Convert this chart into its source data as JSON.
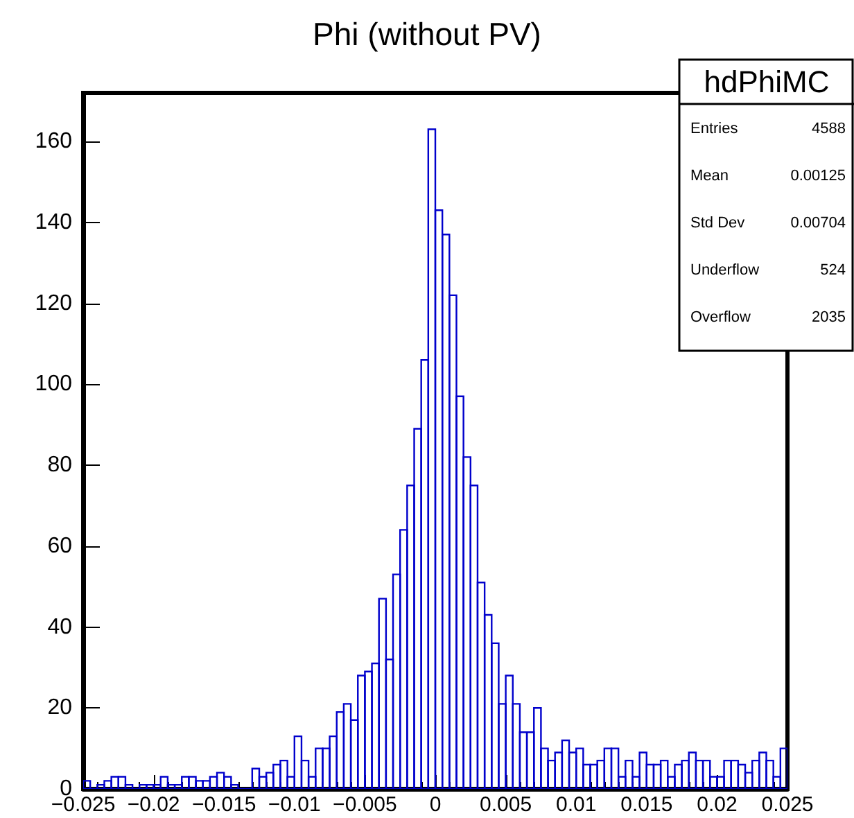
{
  "chart_data": {
    "type": "histogram",
    "title": "Phi (without PV)",
    "color": "#0000cc",
    "bins": [
      -0.025,
      -0.0245,
      -0.024,
      -0.0235,
      -0.023,
      -0.0225,
      -0.022,
      -0.0215,
      -0.021,
      -0.0205,
      -0.02,
      -0.0195,
      -0.019,
      -0.0185,
      -0.018,
      -0.0175,
      -0.017,
      -0.0165,
      -0.016,
      -0.0155,
      -0.015,
      -0.0145,
      -0.014,
      -0.0135,
      -0.013,
      -0.0125,
      -0.012,
      -0.0115,
      -0.011,
      -0.0105,
      -0.01,
      -0.0095,
      -0.009,
      -0.0085,
      -0.008,
      -0.0075,
      -0.007,
      -0.0065,
      -0.006,
      -0.0055,
      -0.005,
      -0.0045,
      -0.004,
      -0.0035,
      -0.003,
      -0.0025,
      -0.002,
      -0.0015,
      -0.001,
      -0.0005,
      0,
      0.0005,
      0.001,
      0.0015,
      0.002,
      0.0025,
      0.003,
      0.0035,
      0.004,
      0.0045,
      0.005,
      0.0055,
      0.006,
      0.0065,
      0.007,
      0.0075,
      0.008,
      0.0085,
      0.009,
      0.0095,
      0.01,
      0.0105,
      0.011,
      0.0115,
      0.012,
      0.0125,
      0.013,
      0.0135,
      0.014,
      0.0145,
      0.015,
      0.0155,
      0.016,
      0.0165,
      0.017,
      0.0175,
      0.018,
      0.0185,
      0.019,
      0.0195,
      0.02,
      0.0205,
      0.021,
      0.0215,
      0.022,
      0.0225,
      0.023,
      0.0235,
      0.024,
      0.0245,
      0.025
    ],
    "values": [
      2,
      0,
      1,
      2,
      3,
      3,
      1,
      0,
      1,
      1,
      1,
      3,
      1,
      1,
      3,
      3,
      2,
      2,
      3,
      4,
      3,
      1,
      0,
      0,
      5,
      3,
      4,
      6,
      7,
      3,
      13,
      7,
      3,
      10,
      10,
      13,
      19,
      21,
      17,
      28,
      29,
      31,
      47,
      32,
      53,
      64,
      75,
      89,
      106,
      163,
      143,
      137,
      122,
      97,
      82,
      75,
      51,
      43,
      36,
      21,
      28,
      21,
      14,
      14,
      20,
      10,
      7,
      9,
      12,
      9,
      10,
      6,
      6,
      7,
      10,
      10,
      3,
      7,
      3,
      9,
      6,
      6,
      7,
      3,
      6,
      7,
      9,
      7,
      7,
      3,
      3,
      7,
      7,
      6,
      4,
      7,
      9,
      7,
      3,
      10
    ],
    "xlim": [
      -0.025,
      0.025
    ],
    "xticks": [
      -0.025,
      -0.02,
      -0.015,
      -0.01,
      -0.005,
      0,
      0.005,
      0.01,
      0.015,
      0.02,
      0.025
    ],
    "ylim": [
      0,
      172
    ],
    "yticks": [
      0,
      20,
      40,
      60,
      80,
      100,
      120,
      140,
      160
    ],
    "grid": false,
    "annotations": [
      "hdPhiMC",
      "Entries 4588",
      "Mean 0.00125",
      "Std Dev 0.00704",
      "Underflow 524",
      "Overflow 2035"
    ]
  }
}
